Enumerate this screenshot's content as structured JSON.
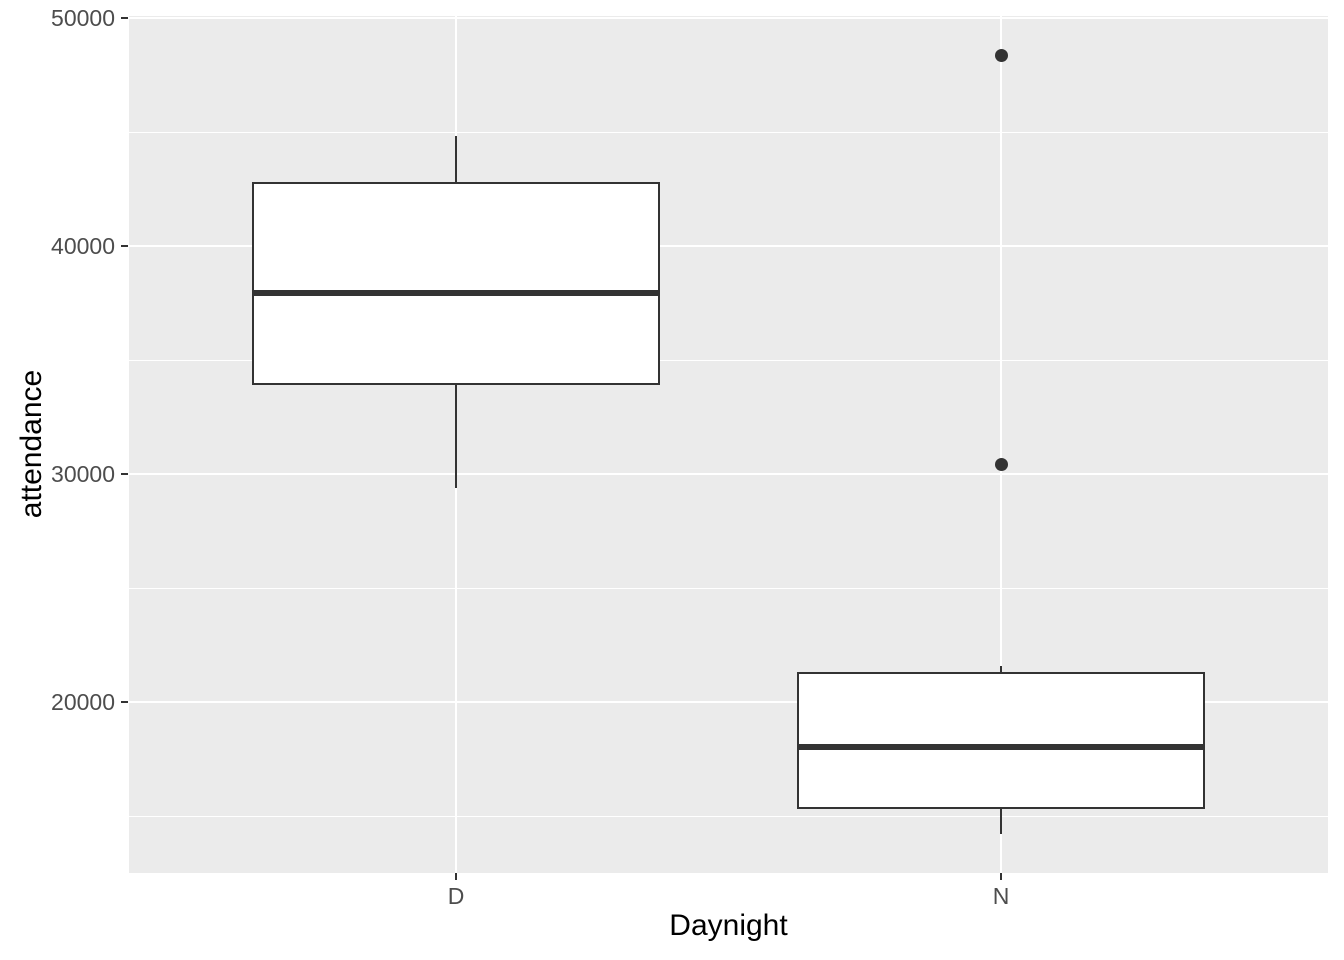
{
  "chart_data": {
    "type": "boxplot",
    "title": "",
    "xlabel": "Daynight",
    "ylabel": "attendance",
    "categories": [
      "D",
      "N"
    ],
    "series": [
      {
        "category": "D",
        "min": 29400,
        "q1": 33900,
        "median": 37950,
        "q3": 42800,
        "max": 44850,
        "outliers": []
      },
      {
        "category": "N",
        "min": 14200,
        "q1": 15300,
        "median": 18050,
        "q3": 21340,
        "max": 21570,
        "outliers": [
          48370,
          30430
        ]
      }
    ],
    "y_ticks": [
      50000,
      40000,
      30000,
      20000
    ],
    "y_tick_labels": [
      "50000",
      "40000",
      "30000",
      "20000"
    ],
    "y_minor_ticks": [
      45000,
      35000,
      25000,
      15000
    ],
    "ylim": [
      12500,
      50100
    ],
    "box_width_fraction": 0.75,
    "grid": "horizontal major+minor; vertical major at each category",
    "legend": "none",
    "colors": {
      "figure_background": "#FFFFFF",
      "panel_background": "#EBEBEB",
      "grid_major": "#FFFFFF",
      "grid_minor": "#FFFFFF",
      "box_border": "#333333",
      "box_fill": "#FFFFFF",
      "median": "#333333",
      "whisker": "#333333",
      "outlier": "#333333",
      "tick_mark": "#333333",
      "tick_label": "#4D4D4D",
      "axis_title": "#000000"
    }
  }
}
